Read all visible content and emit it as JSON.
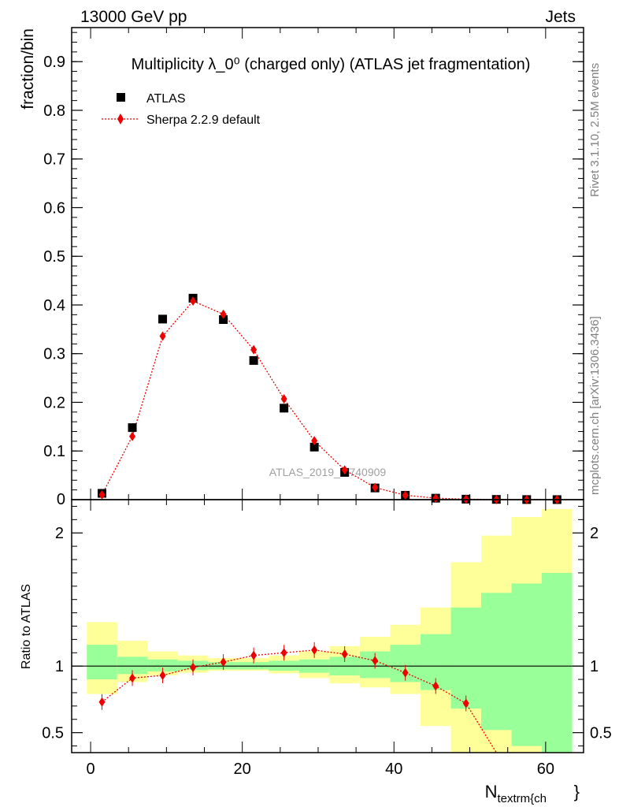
{
  "header": {
    "energy": "13000 GeV pp",
    "process": "Jets"
  },
  "side_labels": {
    "rivet": "Rivet 3.1.10,  2.5M events",
    "mcplots": "mcplots.cern.ch [arXiv:1306.3436]"
  },
  "chart_data": [
    {
      "type": "scatter",
      "panel": "main",
      "title": "Multiplicity λ_0⁰ (charged only) (ATLAS jet fragmentation)",
      "ylabel": "fraction/bin",
      "xlabel": "",
      "xlim": [
        -2.5,
        65
      ],
      "ylim": [
        0,
        0.97
      ],
      "yticks": [
        0.1,
        0.2,
        0.3,
        0.4,
        0.5,
        0.6,
        0.7,
        0.8,
        0.9
      ],
      "ytick_labels": [
        "0.1",
        "0.2",
        "0.3",
        "0.4",
        "0.5",
        "0.6",
        "0.7",
        "0.8",
        "0.9"
      ],
      "bottom_tick_label": "0",
      "watermark": "ATLAS_2019_I1740909",
      "legend_position": "top-left",
      "series": [
        {
          "name": "ATLAS",
          "marker": "square",
          "color": "#000000",
          "x": [
            1.5,
            5.5,
            9.5,
            13.5,
            17.5,
            21.5,
            25.5,
            29.5,
            33.5,
            37.5,
            41.5,
            45.5,
            49.5,
            53.5,
            57.5,
            61.5
          ],
          "y": [
            0.013,
            0.148,
            0.371,
            0.414,
            0.37,
            0.286,
            0.188,
            0.108,
            0.056,
            0.024,
            0.009,
            0.003,
            0.001,
            0.0005,
            0.0002,
            0.0001
          ]
        },
        {
          "name": "Sherpa 2.2.9 default",
          "marker": "diamond",
          "color": "#ee0000",
          "line": "dotted",
          "x": [
            1.5,
            5.5,
            9.5,
            13.5,
            17.5,
            21.5,
            25.5,
            29.5,
            33.5,
            37.5,
            41.5,
            45.5,
            49.5,
            53.5,
            57.5,
            61.5
          ],
          "y": [
            0.01,
            0.13,
            0.336,
            0.408,
            0.381,
            0.308,
            0.207,
            0.121,
            0.061,
            0.025,
            0.009,
            0.003,
            0.001,
            0.0003,
            0.0001,
            3e-05
          ]
        }
      ]
    },
    {
      "type": "line",
      "panel": "ratio",
      "ylabel": "Ratio to ATLAS",
      "xlabel": "N",
      "xlabel_sub": "textrm{ch",
      "xlabel_tail": "}",
      "xlim": [
        -2.5,
        65
      ],
      "ylim": [
        0.35,
        2.25
      ],
      "xticks": [
        0,
        20,
        40,
        60
      ],
      "xtick_labels": [
        "0",
        "20",
        "40",
        "60"
      ],
      "yticks": [
        0.5,
        1,
        2
      ],
      "ytick_labels": [
        "0.5",
        "1",
        "2"
      ],
      "bins": [
        [
          -0.5,
          3.5
        ],
        [
          3.5,
          7.5
        ],
        [
          7.5,
          11.5
        ],
        [
          11.5,
          15.5
        ],
        [
          15.5,
          19.5
        ],
        [
          19.5,
          23.5
        ],
        [
          23.5,
          27.5
        ],
        [
          27.5,
          31.5
        ],
        [
          31.5,
          35.5
        ],
        [
          35.5,
          39.5
        ],
        [
          39.5,
          43.5
        ],
        [
          43.5,
          47.5
        ],
        [
          47.5,
          51.5
        ],
        [
          51.5,
          55.5
        ],
        [
          55.5,
          59.5
        ],
        [
          59.5,
          63.5
        ]
      ],
      "band_inner": {
        "color": "#99ff99",
        "low": [
          0.9,
          0.94,
          0.96,
          0.97,
          0.975,
          0.975,
          0.965,
          0.95,
          0.93,
          0.91,
          0.88,
          0.82,
          0.68,
          0.52,
          0.4,
          0.3
        ],
        "high": [
          1.16,
          1.07,
          1.05,
          1.04,
          1.03,
          1.03,
          1.04,
          1.05,
          1.07,
          1.11,
          1.16,
          1.24,
          1.44,
          1.55,
          1.62,
          1.7
        ]
      },
      "band_outer": {
        "color": "#ffff99",
        "low": [
          0.79,
          0.88,
          0.93,
          0.95,
          0.965,
          0.965,
          0.945,
          0.91,
          0.87,
          0.84,
          0.79,
          0.55,
          0.2,
          0.1,
          0.1,
          0.1
        ],
        "high": [
          1.33,
          1.19,
          1.11,
          1.08,
          1.06,
          1.06,
          1.08,
          1.11,
          1.15,
          1.22,
          1.31,
          1.44,
          1.78,
          1.98,
          2.12,
          2.18
        ]
      },
      "series": [
        {
          "name": "Sherpa 2.2.9 default",
          "color": "#ee0000",
          "x": [
            1.5,
            5.5,
            9.5,
            13.5,
            17.5,
            21.5,
            25.5,
            29.5,
            33.5,
            37.5,
            41.5,
            45.5,
            49.5,
            53.5
          ],
          "y": [
            0.73,
            0.91,
            0.93,
            0.99,
            1.03,
            1.08,
            1.1,
            1.12,
            1.09,
            1.04,
            0.95,
            0.85,
            0.72,
            0.25
          ]
        }
      ]
    }
  ]
}
